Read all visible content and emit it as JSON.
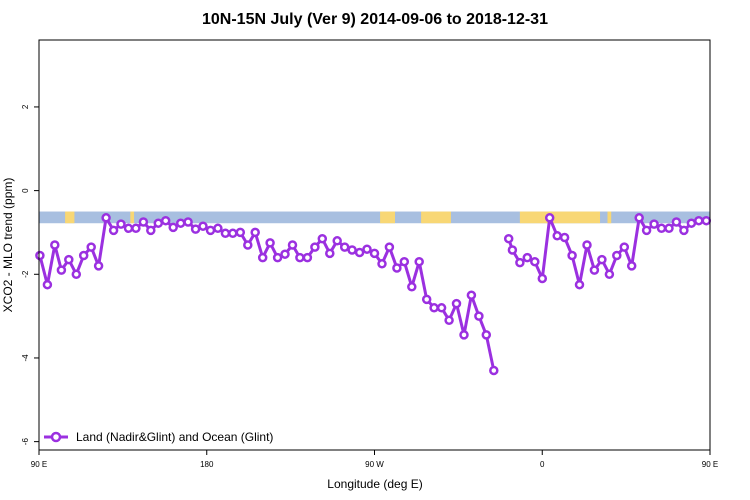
{
  "chart_data": {
    "type": "line",
    "title": "10N-15N July (Ver 9)   2014-09-06 to 2018-12-31",
    "xlabel": "Longitude (deg E)",
    "ylabel": "XCO2 - MLO trend (ppm)",
    "xlim": [
      90,
      450
    ],
    "ylim": [
      -6.2,
      3.6
    ],
    "x_ticks": [
      {
        "value": 90,
        "label": "90 E"
      },
      {
        "value": 180,
        "label": "180"
      },
      {
        "value": 270,
        "label": "90 W"
      },
      {
        "value": 360,
        "label": "0"
      },
      {
        "value": 450,
        "label": "90 E"
      },
      {
        "value": 540,
        "label": "180"
      }
    ],
    "y_ticks": [
      {
        "value": 2,
        "label": "2"
      },
      {
        "value": 0,
        "label": "0"
      },
      {
        "value": -2,
        "label": "-2"
      },
      {
        "value": -4,
        "label": "-4"
      },
      {
        "value": -6,
        "label": "-6"
      }
    ],
    "legend": {
      "label": "Land (Nadir&Glint) and Ocean (Glint)",
      "position": "bottom-left"
    },
    "colors": {
      "series": "#9b30e0",
      "ocean": "#a8bfe0",
      "land": "#f8d775"
    },
    "land_band": {
      "ymin": -0.78,
      "ymax": -0.5
    },
    "land_segments": [
      [
        104,
        109
      ],
      [
        139,
        141
      ],
      [
        273,
        281
      ],
      [
        295,
        311
      ],
      [
        348,
        391
      ],
      [
        395,
        397
      ],
      [
        498,
        505
      ],
      [
        514,
        518
      ]
    ],
    "series": [
      {
        "name": "Land (Nadir&Glint) and Ocean (Glint)",
        "segments": [
          [
            [
              90.5,
              -1.55
            ],
            [
              94.5,
              -2.25
            ],
            [
              98.5,
              -1.3
            ],
            [
              102,
              -1.9
            ],
            [
              106,
              -1.65
            ],
            [
              110,
              -2.0
            ],
            [
              114,
              -1.55
            ],
            [
              118,
              -1.35
            ],
            [
              122,
              -1.8
            ],
            [
              126,
              -0.65
            ],
            [
              130,
              -0.95
            ],
            [
              134,
              -0.8
            ],
            [
              138,
              -0.9
            ],
            [
              142,
              -0.9
            ],
            [
              146,
              -0.75
            ],
            [
              150,
              -0.95
            ],
            [
              154,
              -0.78
            ],
            [
              158,
              -0.72
            ],
            [
              162,
              -0.88
            ],
            [
              166,
              -0.78
            ],
            [
              170,
              -0.75
            ],
            [
              174,
              -0.92
            ],
            [
              178,
              -0.85
            ],
            [
              182,
              -0.95
            ],
            [
              186,
              -0.9
            ],
            [
              190,
              -1.02
            ],
            [
              194,
              -1.02
            ],
            [
              198,
              -1.0
            ],
            [
              202,
              -1.3
            ],
            [
              206,
              -1.0
            ],
            [
              210,
              -1.6
            ],
            [
              214,
              -1.25
            ],
            [
              218,
              -1.6
            ],
            [
              222,
              -1.52
            ],
            [
              226,
              -1.3
            ],
            [
              230,
              -1.6
            ],
            [
              234,
              -1.6
            ],
            [
              238,
              -1.35
            ],
            [
              242,
              -1.15
            ],
            [
              246,
              -1.5
            ],
            [
              250,
              -1.2
            ],
            [
              254,
              -1.35
            ],
            [
              258,
              -1.42
            ],
            [
              262,
              -1.48
            ],
            [
              266,
              -1.4
            ],
            [
              270,
              -1.5
            ],
            [
              274,
              -1.75
            ],
            [
              278,
              -1.35
            ],
            [
              282,
              -1.85
            ],
            [
              286,
              -1.7
            ],
            [
              290,
              -2.3
            ],
            [
              294,
              -1.7
            ],
            [
              298,
              -2.6
            ],
            [
              302,
              -2.8
            ],
            [
              306,
              -2.8
            ],
            [
              310,
              -3.1
            ],
            [
              314,
              -2.7
            ],
            [
              318,
              -3.45
            ],
            [
              322,
              -2.5
            ],
            [
              326,
              -3.0
            ],
            [
              330,
              -3.45
            ],
            [
              334,
              -4.3
            ]
          ],
          [
            [
              342,
              -1.15
            ],
            [
              344,
              -1.42
            ],
            [
              348,
              -1.72
            ],
            [
              352,
              -1.6
            ],
            [
              356,
              -1.7
            ],
            [
              360,
              -2.1
            ],
            [
              364,
              -0.65
            ],
            [
              368,
              -1.08
            ],
            [
              372,
              -1.12
            ],
            [
              376,
              -1.55
            ],
            [
              380,
              -2.25
            ],
            [
              384,
              -1.3
            ],
            [
              388,
              -1.9
            ],
            [
              392,
              -1.65
            ],
            [
              396,
              -2.0
            ],
            [
              400,
              -1.55
            ],
            [
              404,
              -1.35
            ],
            [
              408,
              -1.8
            ],
            [
              412,
              -0.65
            ],
            [
              416,
              -0.95
            ],
            [
              420,
              -0.8
            ],
            [
              424,
              -0.9
            ],
            [
              428,
              -0.9
            ],
            [
              432,
              -0.75
            ],
            [
              436,
              -0.95
            ],
            [
              440,
              -0.78
            ],
            [
              444,
              -0.72
            ],
            [
              448,
              -0.72
            ]
          ]
        ]
      }
    ]
  }
}
